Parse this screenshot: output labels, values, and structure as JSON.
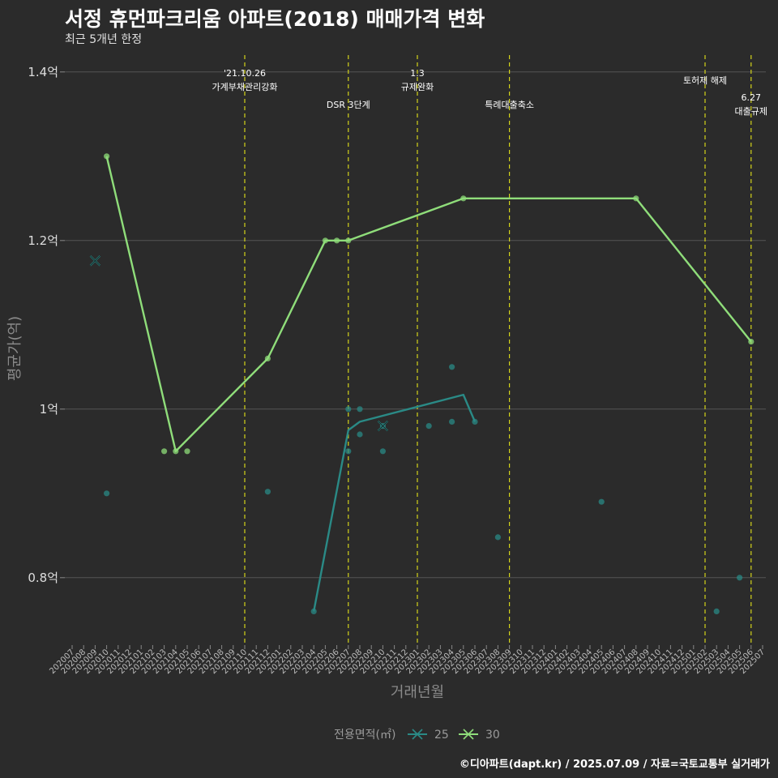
{
  "header": {
    "title": "서정 휴먼파크리움 아파트(2018) 매매가격 변화",
    "subtitle": "최근 5개년 한정"
  },
  "caption": "©디아파트(dapt.kr) / 2025.07.09 / 자료=국토교통부 실거래가",
  "colors": {
    "background": "#2b2b2b",
    "grid": "#555555",
    "series_25": "#2a8a86",
    "series_30": "#8fdd7a",
    "event_line": "#d4d41a"
  },
  "chart_data": {
    "type": "line",
    "xlabel": "거래년월",
    "ylabel": "평균가(억)",
    "ylim": [
      0.72,
      1.42
    ],
    "yticks": [
      {
        "value": 0.8,
        "label": "0.8억"
      },
      {
        "value": 1.0,
        "label": "1억"
      },
      {
        "value": 1.2,
        "label": "1.2억"
      },
      {
        "value": 1.4,
        "label": "1.4억"
      }
    ],
    "categories": [
      "202007",
      "202008",
      "202009",
      "202010",
      "202011",
      "202012",
      "202101",
      "202102",
      "202103",
      "202104",
      "202105",
      "202106",
      "202107",
      "202108",
      "202109",
      "202110",
      "202111",
      "202112",
      "202201",
      "202202",
      "202203",
      "202204",
      "202205",
      "202206",
      "202207",
      "202208",
      "202209",
      "202210",
      "202211",
      "202212",
      "202301",
      "202302",
      "202303",
      "202304",
      "202305",
      "202306",
      "202307",
      "202308",
      "202309",
      "202310",
      "202311",
      "202312",
      "202401",
      "202402",
      "202403",
      "202404",
      "202405",
      "202406",
      "202407",
      "202408",
      "202409",
      "202410",
      "202411",
      "202412",
      "202501",
      "202502",
      "202503",
      "202504",
      "202505",
      "202506",
      "202507"
    ],
    "legend": {
      "title": "전용면적(㎡)",
      "items": [
        "25",
        "30"
      ]
    },
    "series": [
      {
        "name": "25",
        "line": [
          {
            "x": "202204",
            "y": 0.76
          },
          {
            "x": "202207",
            "y": 0.975
          },
          {
            "x": "202208",
            "y": 0.985
          },
          {
            "x": "202305",
            "y": 1.017
          },
          {
            "x": "202306",
            "y": 0.985
          }
        ],
        "points": [
          {
            "x": "202010",
            "y": 0.9
          },
          {
            "x": "202112",
            "y": 0.902
          },
          {
            "x": "202204",
            "y": 0.76
          },
          {
            "x": "202207",
            "y": 1.0
          },
          {
            "x": "202207",
            "y": 0.95
          },
          {
            "x": "202208",
            "y": 1.0
          },
          {
            "x": "202208",
            "y": 0.97
          },
          {
            "x": "202210",
            "y": 0.95
          },
          {
            "x": "202210",
            "y": 0.98
          },
          {
            "x": "202302",
            "y": 0.98
          },
          {
            "x": "202304",
            "y": 1.05
          },
          {
            "x": "202304",
            "y": 0.985
          },
          {
            "x": "202306",
            "y": 0.985
          },
          {
            "x": "202308",
            "y": 0.848
          },
          {
            "x": "202405",
            "y": 0.89
          },
          {
            "x": "202503",
            "y": 0.76
          },
          {
            "x": "202505",
            "y": 0.8
          }
        ],
        "cross_points": [
          {
            "x": "202009",
            "y": 1.176
          },
          {
            "x": "202210",
            "y": 0.98
          }
        ]
      },
      {
        "name": "30",
        "line": [
          {
            "x": "202010",
            "y": 1.3
          },
          {
            "x": "202104",
            "y": 0.95
          },
          {
            "x": "202112",
            "y": 1.06
          },
          {
            "x": "202205",
            "y": 1.2
          },
          {
            "x": "202206",
            "y": 1.2
          },
          {
            "x": "202207",
            "y": 1.2
          },
          {
            "x": "202305",
            "y": 1.25
          },
          {
            "x": "202408",
            "y": 1.25
          },
          {
            "x": "202506",
            "y": 1.08
          }
        ],
        "points": [
          {
            "x": "202010",
            "y": 1.3
          },
          {
            "x": "202103",
            "y": 0.95
          },
          {
            "x": "202104",
            "y": 0.95
          },
          {
            "x": "202105",
            "y": 0.95
          },
          {
            "x": "202112",
            "y": 1.06
          },
          {
            "x": "202205",
            "y": 1.2
          },
          {
            "x": "202206",
            "y": 1.2
          },
          {
            "x": "202207",
            "y": 1.2
          },
          {
            "x": "202305",
            "y": 1.25
          },
          {
            "x": "202408",
            "y": 1.25
          },
          {
            "x": "202506",
            "y": 1.08
          }
        ],
        "cross_points": []
      }
    ],
    "events": [
      {
        "x": "202110",
        "lines": [
          "'21.10.26",
          "가계부채관리강화"
        ],
        "level": 0
      },
      {
        "x": "202207",
        "lines": [
          "DSR 3단계"
        ],
        "level": 1
      },
      {
        "x": "202301",
        "lines": [
          "1.3",
          "규제완화"
        ],
        "level": 0
      },
      {
        "x": "202309",
        "lines": [
          "특례대출축소"
        ],
        "level": 1
      },
      {
        "x": "202502",
        "lines": [
          "토허제 해제"
        ],
        "level": 0
      },
      {
        "x": "202506",
        "lines": [
          "6.27",
          "대출규제"
        ],
        "level": 2
      }
    ]
  }
}
